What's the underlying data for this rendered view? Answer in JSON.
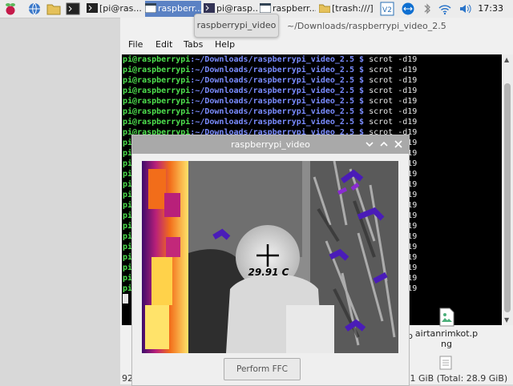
{
  "taskbar": {
    "tasks": [
      {
        "label": "[pi@ras...",
        "icon": "terminal-icon"
      },
      {
        "label": "raspberr...",
        "icon": "window-icon",
        "active": true
      },
      {
        "label": "pi@rasp...",
        "icon": "terminal-icon"
      },
      {
        "label": "raspberr...",
        "icon": "window-icon"
      },
      {
        "label": "[trash:///]",
        "icon": "folder-icon"
      }
    ],
    "clock": "17:33"
  },
  "tooltip": "raspberrypi_video",
  "terminal": {
    "path_title": "~/Downloads/raspberrypi_video_2.5",
    "menu": [
      "File",
      "Edit",
      "Tabs",
      "Help"
    ],
    "prompt_user": "pi@raspberrypi",
    "prompt_path": ":~/Downloads/raspberrypi_video_2.5 $",
    "command": "scrot -d19",
    "line_count": 23
  },
  "desktop_file": {
    "name_line1": "airtanrimkot.p",
    "name_line2": "ng",
    "left_fragment": "p"
  },
  "statusbar": {
    "left": "92",
    "right": ".1 GiB (Total: 28.9 GiB)"
  },
  "video_window": {
    "title": "raspberrypi_video",
    "temperature": "29.91 C",
    "ffc_button": "Perform FFC"
  },
  "colors": {
    "prompt_user": "#4ee04e",
    "prompt_path": "#7a8cff",
    "terminal_bg": "#000000",
    "active_task": "#5b82c4"
  }
}
